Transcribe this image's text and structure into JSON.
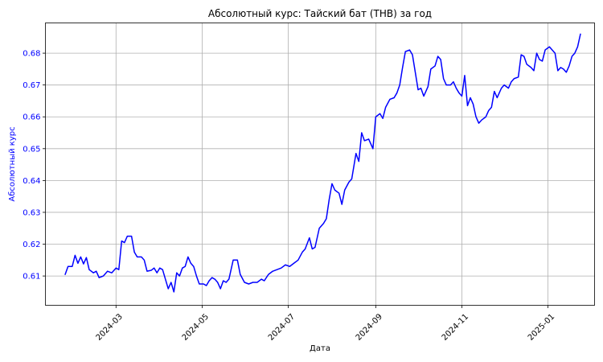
{
  "chart_data": {
    "type": "line",
    "title": "Абсолютный курс: Тайский бат (THB) за год",
    "xlabel": "Дата",
    "ylabel": "Абсолютный курс",
    "x_tick_labels": [
      "2024-03",
      "2024-05",
      "2024-07",
      "2024-09",
      "2024-11",
      "2025-01"
    ],
    "x_tick_dates": [
      "2024-03-01",
      "2024-05-01",
      "2024-07-01",
      "2024-09-01",
      "2024-11-01",
      "2025-01-01"
    ],
    "y_tick_labels": [
      "0.61",
      "0.62",
      "0.63",
      "0.64",
      "0.65",
      "0.66",
      "0.67",
      "0.68"
    ],
    "y_ticks": [
      0.61,
      0.62,
      0.63,
      0.64,
      0.65,
      0.66,
      0.67,
      0.68
    ],
    "xlim": [
      "2024-01-11",
      "2025-02-03"
    ],
    "ylim": [
      0.6008,
      0.6895
    ],
    "grid": true,
    "line_color": "#0000ff",
    "ylabel_color": "#0000ff",
    "series": [
      {
        "points": [
          [
            "2024-01-25",
            0.6105
          ],
          [
            "2024-01-27",
            0.613
          ],
          [
            "2024-01-30",
            0.613
          ],
          [
            "2024-02-01",
            0.6165
          ],
          [
            "2024-02-03",
            0.614
          ],
          [
            "2024-02-05",
            0.616
          ],
          [
            "2024-02-07",
            0.6138
          ],
          [
            "2024-02-09",
            0.6158
          ],
          [
            "2024-02-11",
            0.612
          ],
          [
            "2024-02-14",
            0.611
          ],
          [
            "2024-02-16",
            0.6115
          ],
          [
            "2024-02-18",
            0.6095
          ],
          [
            "2024-02-21",
            0.61
          ],
          [
            "2024-02-24",
            0.6115
          ],
          [
            "2024-02-27",
            0.611
          ],
          [
            "2024-03-01",
            0.6125
          ],
          [
            "2024-03-03",
            0.612
          ],
          [
            "2024-03-05",
            0.621
          ],
          [
            "2024-03-07",
            0.6205
          ],
          [
            "2024-03-09",
            0.6225
          ],
          [
            "2024-03-12",
            0.6225
          ],
          [
            "2024-03-14",
            0.6175
          ],
          [
            "2024-03-16",
            0.616
          ],
          [
            "2024-03-19",
            0.616
          ],
          [
            "2024-03-21",
            0.615
          ],
          [
            "2024-03-23",
            0.6115
          ],
          [
            "2024-03-26",
            0.6118
          ],
          [
            "2024-03-28",
            0.6125
          ],
          [
            "2024-03-30",
            0.611
          ],
          [
            "2024-04-01",
            0.6125
          ],
          [
            "2024-04-03",
            0.612
          ],
          [
            "2024-04-05",
            0.609
          ],
          [
            "2024-04-07",
            0.606
          ],
          [
            "2024-04-09",
            0.608
          ],
          [
            "2024-04-11",
            0.605
          ],
          [
            "2024-04-13",
            0.611
          ],
          [
            "2024-04-15",
            0.61
          ],
          [
            "2024-04-17",
            0.6125
          ],
          [
            "2024-04-19",
            0.613
          ],
          [
            "2024-04-21",
            0.616
          ],
          [
            "2024-04-23",
            0.614
          ],
          [
            "2024-04-25",
            0.613
          ],
          [
            "2024-04-27",
            0.61
          ],
          [
            "2024-04-29",
            0.6075
          ],
          [
            "2024-05-02",
            0.6075
          ],
          [
            "2024-05-04",
            0.607
          ],
          [
            "2024-05-06",
            0.6085
          ],
          [
            "2024-05-08",
            0.6095
          ],
          [
            "2024-05-10",
            0.609
          ],
          [
            "2024-05-12",
            0.608
          ],
          [
            "2024-05-14",
            0.606
          ],
          [
            "2024-05-16",
            0.6085
          ],
          [
            "2024-05-18",
            0.608
          ],
          [
            "2024-05-20",
            0.609
          ],
          [
            "2024-05-23",
            0.615
          ],
          [
            "2024-05-26",
            0.615
          ],
          [
            "2024-05-28",
            0.6105
          ],
          [
            "2024-05-31",
            0.608
          ],
          [
            "2024-06-03",
            0.6075
          ],
          [
            "2024-06-06",
            0.608
          ],
          [
            "2024-06-09",
            0.608
          ],
          [
            "2024-06-12",
            0.609
          ],
          [
            "2024-06-14",
            0.6085
          ],
          [
            "2024-06-17",
            0.6105
          ],
          [
            "2024-06-20",
            0.6115
          ],
          [
            "2024-06-23",
            0.612
          ],
          [
            "2024-06-26",
            0.6125
          ],
          [
            "2024-06-29",
            0.6135
          ],
          [
            "2024-07-02",
            0.613
          ],
          [
            "2024-07-05",
            0.614
          ],
          [
            "2024-07-08",
            0.615
          ],
          [
            "2024-07-11",
            0.6175
          ],
          [
            "2024-07-13",
            0.6185
          ],
          [
            "2024-07-16",
            0.622
          ],
          [
            "2024-07-18",
            0.6185
          ],
          [
            "2024-07-20",
            0.619
          ],
          [
            "2024-07-23",
            0.625
          ],
          [
            "2024-07-26",
            0.6265
          ],
          [
            "2024-07-28",
            0.628
          ],
          [
            "2024-07-30",
            0.634
          ],
          [
            "2024-08-01",
            0.639
          ],
          [
            "2024-08-03",
            0.637
          ],
          [
            "2024-08-06",
            0.636
          ],
          [
            "2024-08-08",
            0.6325
          ],
          [
            "2024-08-10",
            0.637
          ],
          [
            "2024-08-13",
            0.6395
          ],
          [
            "2024-08-15",
            0.6405
          ],
          [
            "2024-08-18",
            0.6485
          ],
          [
            "2024-08-20",
            0.646
          ],
          [
            "2024-08-22",
            0.655
          ],
          [
            "2024-08-24",
            0.6525
          ],
          [
            "2024-08-27",
            0.653
          ],
          [
            "2024-08-30",
            0.65
          ],
          [
            "2024-09-01",
            0.66
          ],
          [
            "2024-09-04",
            0.661
          ],
          [
            "2024-09-06",
            0.6595
          ],
          [
            "2024-09-08",
            0.663
          ],
          [
            "2024-09-11",
            0.6655
          ],
          [
            "2024-09-14",
            0.666
          ],
          [
            "2024-09-16",
            0.6675
          ],
          [
            "2024-09-18",
            0.67
          ],
          [
            "2024-09-20",
            0.6755
          ],
          [
            "2024-09-22",
            0.6805
          ],
          [
            "2024-09-25",
            0.681
          ],
          [
            "2024-09-27",
            0.6795
          ],
          [
            "2024-09-29",
            0.674
          ],
          [
            "2024-10-01",
            0.6685
          ],
          [
            "2024-10-03",
            0.669
          ],
          [
            "2024-10-05",
            0.6665
          ],
          [
            "2024-10-08",
            0.6695
          ],
          [
            "2024-10-10",
            0.675
          ],
          [
            "2024-10-13",
            0.676
          ],
          [
            "2024-10-15",
            0.679
          ],
          [
            "2024-10-17",
            0.678
          ],
          [
            "2024-10-19",
            0.672
          ],
          [
            "2024-10-21",
            0.67
          ],
          [
            "2024-10-24",
            0.67
          ],
          [
            "2024-10-26",
            0.671
          ],
          [
            "2024-10-28",
            0.669
          ],
          [
            "2024-10-30",
            0.6675
          ],
          [
            "2024-11-01",
            0.6665
          ],
          [
            "2024-11-03",
            0.673
          ],
          [
            "2024-11-05",
            0.6635
          ],
          [
            "2024-11-07",
            0.666
          ],
          [
            "2024-11-09",
            0.664
          ],
          [
            "2024-11-11",
            0.66
          ],
          [
            "2024-11-13",
            0.658
          ],
          [
            "2024-11-15",
            0.659
          ],
          [
            "2024-11-18",
            0.66
          ],
          [
            "2024-11-20",
            0.662
          ],
          [
            "2024-11-22",
            0.663
          ],
          [
            "2024-11-24",
            0.668
          ],
          [
            "2024-11-26",
            0.666
          ],
          [
            "2024-11-29",
            0.669
          ],
          [
            "2024-12-01",
            0.67
          ],
          [
            "2024-12-04",
            0.669
          ],
          [
            "2024-12-06",
            0.671
          ],
          [
            "2024-12-08",
            0.672
          ],
          [
            "2024-12-11",
            0.6725
          ],
          [
            "2024-12-13",
            0.6795
          ],
          [
            "2024-12-15",
            0.679
          ],
          [
            "2024-12-17",
            0.6765
          ],
          [
            "2024-12-20",
            0.6755
          ],
          [
            "2024-12-22",
            0.6745
          ],
          [
            "2024-12-24",
            0.68
          ],
          [
            "2024-12-26",
            0.678
          ],
          [
            "2024-12-28",
            0.6775
          ],
          [
            "2024-12-30",
            0.681
          ],
          [
            "2025-01-02",
            0.682
          ],
          [
            "2025-01-04",
            0.681
          ],
          [
            "2025-01-06",
            0.68
          ],
          [
            "2025-01-08",
            0.6745
          ],
          [
            "2025-01-10",
            0.6755
          ],
          [
            "2025-01-12",
            0.675
          ],
          [
            "2025-01-14",
            0.674
          ],
          [
            "2025-01-16",
            0.676
          ],
          [
            "2025-01-18",
            0.679
          ],
          [
            "2025-01-20",
            0.68
          ],
          [
            "2025-01-22",
            0.682
          ],
          [
            "2025-01-24",
            0.686
          ]
        ]
      }
    ]
  }
}
